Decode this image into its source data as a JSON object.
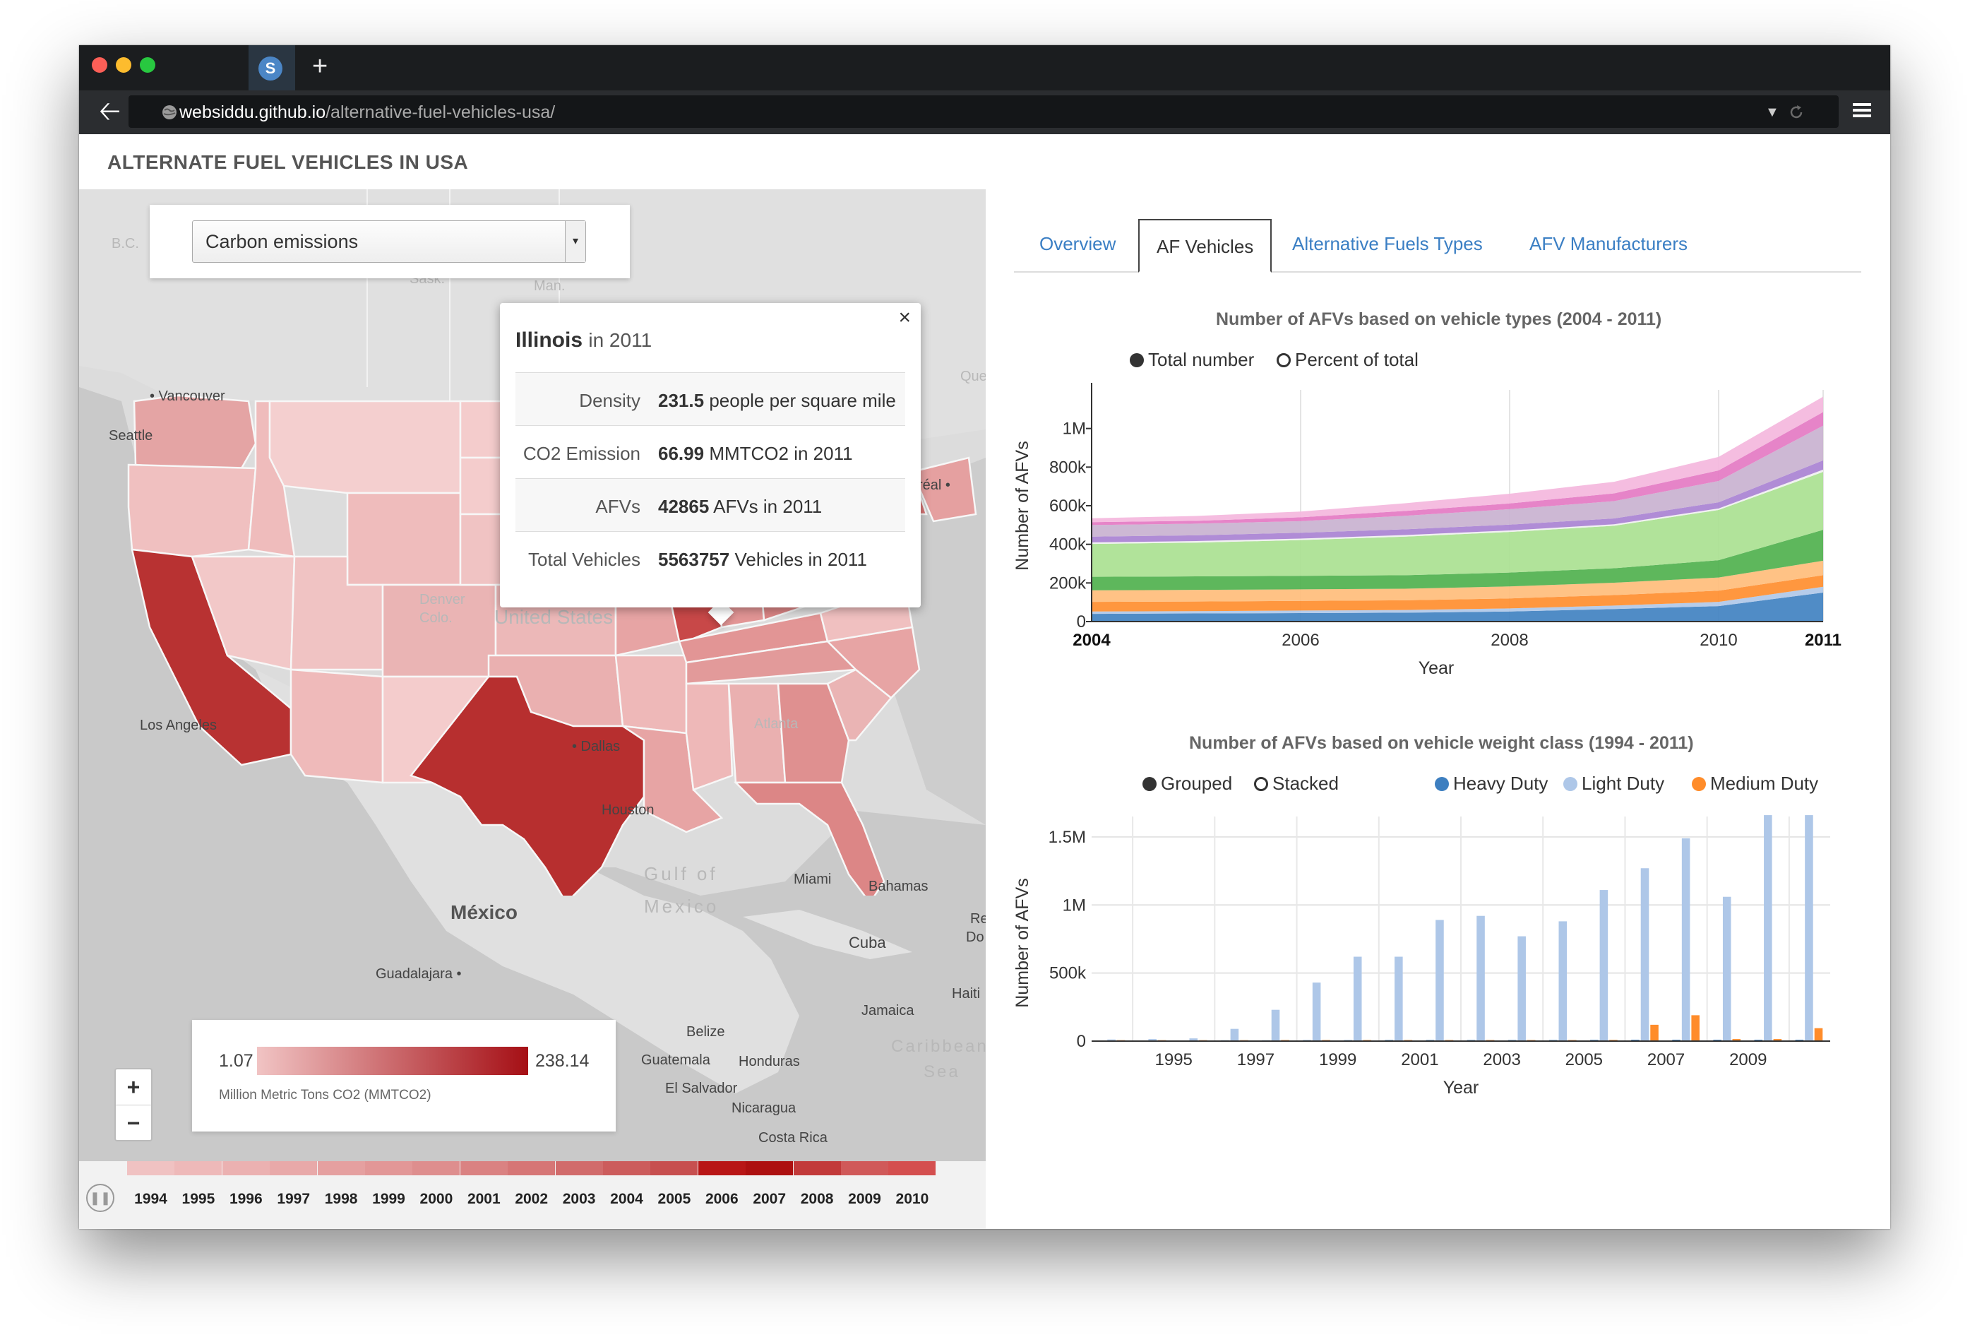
{
  "browser": {
    "url_host": "websiddu.github.io",
    "url_path": "/alternative-fuel-vehicles-usa/",
    "tab_icon": "S",
    "new_tab_label": "+"
  },
  "app": {
    "title": "ALTERNATE FUEL VEHICLES IN USA"
  },
  "map": {
    "layer_select": {
      "selected": "Carbon emissions"
    },
    "popup": {
      "state": "Illinois",
      "year_text": "in 2011",
      "rows": [
        {
          "key": "Density",
          "value": "231.5",
          "unit": "people per square mile"
        },
        {
          "key": "CO2 Emission",
          "value": "66.99",
          "unit": "MMTCO2 in 2011"
        },
        {
          "key": "AFVs",
          "value": "42865",
          "unit": "AFVs in 2011"
        },
        {
          "key": "Total Vehicles",
          "value": "5563757",
          "unit": "Vehicles in 2011"
        }
      ],
      "close": "×"
    },
    "legend": {
      "min": "1.07",
      "max": "238.14",
      "unit": "Million Metric Tons CO2 (MMTCO2)"
    },
    "zoom": {
      "in": "+",
      "out": "−"
    },
    "timeline": {
      "years": [
        "1994",
        "1995",
        "1996",
        "1997",
        "1998",
        "1999",
        "2000",
        "2001",
        "2002",
        "2003",
        "2004",
        "2005",
        "2006",
        "2007",
        "2008",
        "2009",
        "2010"
      ],
      "colors": [
        "#f0c2c2",
        "#eeb9b9",
        "#ebb1b1",
        "#e8a9a9",
        "#e5a0a0",
        "#e29797",
        "#de8e8e",
        "#da8282",
        "#d67676",
        "#d16b6b",
        "#cc5c5c",
        "#c74f4f",
        "#b81616",
        "#ad1010",
        "#c23a3a",
        "#d05959",
        "#d44f4f"
      ]
    },
    "labels": {
      "bc": "B.C.",
      "sask": "Sask.",
      "man": "Man.",
      "vancouver": "• Vancouver",
      "seattle": "Seattle",
      "real": "réal •",
      "que": "Que",
      "denver": "Denver",
      "colo": "Colo.",
      "united_states": "United States",
      "los_angeles": "Los Angeles",
      "dallas": "• Dallas",
      "houston": "Houston",
      "atlanta": "Atlanta",
      "miami": "Miami",
      "mexico": "México",
      "guadalajara": "Guadalajara •",
      "gulf": "Gulf of",
      "mexico2": "Mexico",
      "bahamas": "Bahamas",
      "cuba": "Cuba",
      "haiti": "Haiti",
      "jamaica": "Jamaica",
      "belize": "Belize",
      "guatemala": "Guatemala",
      "honduras": "Honduras",
      "el_salvador": "El Salvador",
      "nicaragua": "Nicaragua",
      "costa_rica": "Costa Rica",
      "caribbean": "Caribbean",
      "sea": "Sea",
      "re": "Re",
      "do": "Do"
    }
  },
  "panel": {
    "tabs": [
      "Overview",
      "AF Vehicles",
      "Alternative Fuels Types",
      "AFV Manufacturers"
    ],
    "active_tab": "AF Vehicles",
    "chart1_controls": {
      "total": "Total number",
      "percent": "Percent of total"
    },
    "chart2_controls": {
      "grouped": "Grouped",
      "stacked": "Stacked"
    }
  },
  "chart_data": [
    {
      "type": "area",
      "title": "Number of AFVs based on vehicle types (2004 - 2011)",
      "xlabel": "Year",
      "ylabel": "Number of AFVs",
      "x": [
        2004,
        2005,
        2006,
        2007,
        2008,
        2009,
        2010,
        2011
      ],
      "xticks": [
        "2004",
        "2006",
        "2008",
        "2010",
        "2011"
      ],
      "yticks": [
        "0",
        "200k",
        "400k",
        "600k",
        "800k",
        "1M"
      ],
      "ylim": [
        0,
        1200000
      ],
      "stacked": true,
      "series": [
        {
          "color": "#3d7fc0",
          "values": [
            40000,
            42000,
            44000,
            46000,
            52000,
            65000,
            80000,
            150000
          ]
        },
        {
          "color": "#aec7e8",
          "values": [
            12000,
            12000,
            13000,
            14000,
            16000,
            18000,
            22000,
            30000
          ]
        },
        {
          "color": "#ff8c2a",
          "values": [
            50000,
            50000,
            50000,
            50000,
            52000,
            54000,
            58000,
            60000
          ]
        },
        {
          "color": "#ffbb78",
          "values": [
            60000,
            60000,
            60000,
            60000,
            62000,
            64000,
            68000,
            75000
          ]
        },
        {
          "color": "#4daf4a",
          "values": [
            70000,
            70000,
            70000,
            70000,
            72000,
            75000,
            90000,
            160000
          ]
        },
        {
          "color": "#a8e08f",
          "values": [
            170000,
            175000,
            185000,
            200000,
            210000,
            220000,
            260000,
            300000
          ]
        },
        {
          "color": "#f0f0f0",
          "values": [
            8000,
            8000,
            8000,
            8000,
            8000,
            8000,
            8000,
            12000
          ]
        },
        {
          "color": "#a77fd1",
          "values": [
            30000,
            30000,
            30000,
            30000,
            30000,
            30000,
            32000,
            48000
          ]
        },
        {
          "color": "#c8b0cf",
          "values": [
            60000,
            60000,
            60000,
            70000,
            80000,
            90000,
            110000,
            180000
          ]
        },
        {
          "color": "#e377c2",
          "values": [
            15000,
            15000,
            20000,
            25000,
            30000,
            40000,
            55000,
            70000
          ]
        },
        {
          "color": "#f4b6dd",
          "values": [
            20000,
            25000,
            30000,
            40000,
            50000,
            60000,
            70000,
            80000
          ]
        }
      ]
    },
    {
      "type": "bar",
      "title": "Number of AFVs based on vehicle weight class (1994 - 2011)",
      "xlabel": "Year",
      "ylabel": "Number of AFVs",
      "categories": [
        "1994",
        "1995",
        "1996",
        "1997",
        "1998",
        "1999",
        "2000",
        "2001",
        "2002",
        "2003",
        "2004",
        "2005",
        "2006",
        "2007",
        "2008",
        "2009",
        "2010",
        "2011"
      ],
      "xticks": [
        "1995",
        "1997",
        "1999",
        "2001",
        "2003",
        "2005",
        "2007",
        "2009"
      ],
      "yticks": [
        "0",
        "500k",
        "1M",
        "1.5M"
      ],
      "ylim": [
        0,
        1650000
      ],
      "grouped": true,
      "series": [
        {
          "name": "Heavy Duty",
          "color": "#3d7fc0",
          "values": [
            5000,
            5000,
            5000,
            6000,
            6000,
            7000,
            7000,
            8000,
            8000,
            8000,
            8000,
            8000,
            9000,
            10000,
            10000,
            10000,
            10000,
            10000
          ]
        },
        {
          "name": "Light Duty",
          "color": "#aec7e8",
          "values": [
            12000,
            15000,
            20000,
            90000,
            230000,
            430000,
            620000,
            620000,
            890000,
            920000,
            770000,
            880000,
            1110000,
            1270000,
            1490000,
            1060000,
            1660000,
            1660000
          ]
        },
        {
          "name": "Medium Duty",
          "color": "#ff8c2a",
          "values": [
            7000,
            7000,
            7000,
            7000,
            8000,
            8000,
            8000,
            8000,
            8000,
            8000,
            8000,
            8000,
            9000,
            120000,
            190000,
            15000,
            15000,
            95000
          ]
        }
      ]
    }
  ]
}
